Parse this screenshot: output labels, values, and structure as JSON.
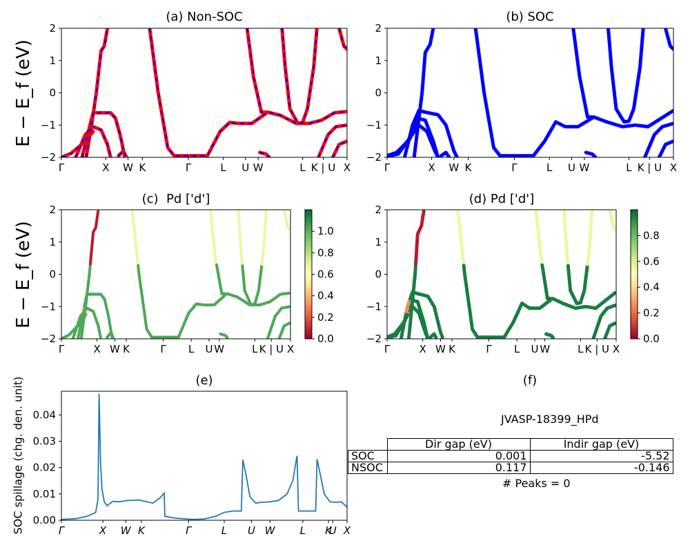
{
  "figure": {
    "ylabel_band": "E − E_f (eV)",
    "ylabel_spillage": "SOC spillage (chg. den. unit)"
  },
  "kpath_labels": [
    "Γ",
    "X",
    "W",
    "K",
    "Γ",
    "L",
    "U",
    "W",
    "L",
    "K | U",
    "X"
  ],
  "chart_data": [
    {
      "panel": "a",
      "type": "line",
      "title": "(a) Non-SOC",
      "xticks": [
        "Γ",
        "X",
        "W",
        "K",
        "Γ",
        "L",
        "U",
        "W",
        "L",
        "K | U",
        "X"
      ],
      "ylim": [
        -2,
        2
      ],
      "yticks": [
        -2,
        -1,
        0,
        1,
        2
      ],
      "style": "red solid with blue dashed overlay (spin up / spin down identical)",
      "colors": {
        "up": "#ff0000",
        "down": "#0000ff"
      },
      "series": [
        {
          "points": [
            [
              0,
              -2
            ],
            [
              0.3,
              -1.88
            ],
            [
              0.7,
              -1.55
            ],
            [
              1.0,
              -1.2
            ]
          ]
        },
        {
          "points": [
            [
              0.45,
              -2
            ],
            [
              0.75,
              -1.3
            ],
            [
              1.0,
              -1.05
            ],
            [
              1.25,
              -1.15
            ],
            [
              1.45,
              -1.6
            ],
            [
              1.55,
              -2
            ]
          ]
        },
        {
          "points": [
            [
              0.65,
              -2
            ],
            [
              0.85,
              -1.2
            ],
            [
              1.0,
              -0.62
            ],
            [
              1.55,
              -0.62
            ],
            [
              1.7,
              -0.78
            ],
            [
              1.85,
              -1.3
            ],
            [
              2.0,
              -2
            ]
          ]
        },
        {
          "points": [
            [
              0.78,
              -2
            ],
            [
              0.95,
              -1.0
            ],
            [
              1.1,
              0.0
            ],
            [
              1.25,
              1.3
            ],
            [
              1.35,
              1.45
            ],
            [
              1.45,
              2.0
            ]
          ]
        },
        {
          "points": [
            [
              1.8,
              -1.95
            ],
            [
              1.95,
              -1.8
            ],
            [
              2.05,
              -2.0
            ]
          ]
        },
        {
          "points": [
            [
              2.78,
              2.0
            ],
            [
              3.05,
              0.0
            ],
            [
              3.35,
              -1.7
            ],
            [
              3.55,
              -1.95
            ],
            [
              4.6,
              -1.95
            ],
            [
              5.0,
              -1.2
            ],
            [
              5.3,
              -0.92
            ],
            [
              5.6,
              -0.95
            ],
            [
              6.0,
              -0.95
            ],
            [
              6.5,
              -0.6
            ],
            [
              6.9,
              -0.7
            ],
            [
              7.4,
              -0.95
            ],
            [
              7.8,
              -0.95
            ],
            [
              8.2,
              -0.85
            ],
            [
              8.6,
              -0.62
            ],
            [
              9.0,
              -0.58
            ]
          ]
        },
        {
          "points": [
            [
              5.85,
              2.0
            ],
            [
              6.05,
              0.5
            ],
            [
              6.3,
              -0.6
            ],
            [
              6.45,
              -0.6
            ]
          ]
        },
        {
          "points": [
            [
              6.95,
              2.0
            ],
            [
              7.05,
              0.8
            ],
            [
              7.2,
              -0.5
            ],
            [
              7.45,
              -0.95
            ],
            [
              7.6,
              -0.92
            ],
            [
              7.75,
              -0.5
            ],
            [
              7.95,
              0.8
            ],
            [
              8.05,
              2.0
            ]
          ]
        },
        {
          "points": [
            [
              6.25,
              -1.85
            ],
            [
              6.45,
              -1.9
            ],
            [
              6.55,
              -2.0
            ]
          ]
        },
        {
          "points": [
            [
              8.1,
              -2.0
            ],
            [
              8.4,
              -1.3
            ],
            [
              8.65,
              -1.05
            ],
            [
              9.0,
              -1.0
            ]
          ]
        },
        {
          "points": [
            [
              8.75,
              2.0
            ],
            [
              8.9,
              1.45
            ],
            [
              9.0,
              1.35
            ]
          ]
        },
        {
          "points": [
            [
              8.55,
              -2.0
            ],
            [
              8.75,
              -1.6
            ],
            [
              9.0,
              -1.5
            ]
          ]
        }
      ]
    },
    {
      "panel": "b",
      "type": "line",
      "title": "(b) SOC",
      "xticks": [
        "Γ",
        "X",
        "W",
        "K",
        "Γ",
        "L",
        "U",
        "W",
        "L",
        "K | U",
        "X"
      ],
      "ylim": [
        -2,
        2
      ],
      "yticks": [
        -2,
        -1,
        0,
        1,
        2
      ],
      "colors": {
        "band": "#0000ff"
      },
      "series": [
        {
          "points": [
            [
              0,
              -1.95
            ],
            [
              0.3,
              -1.85
            ],
            [
              0.7,
              -1.45
            ],
            [
              1.0,
              -0.8
            ],
            [
              1.2,
              -0.85
            ],
            [
              1.45,
              -1.5
            ],
            [
              1.6,
              -2.0
            ]
          ]
        },
        {
          "points": [
            [
              0,
              -1.97
            ],
            [
              0.35,
              -1.9
            ],
            [
              0.75,
              -1.35
            ],
            [
              1.0,
              -1.0
            ],
            [
              1.25,
              -1.2
            ],
            [
              1.5,
              -1.8
            ],
            [
              1.6,
              -2.0
            ]
          ]
        },
        {
          "points": [
            [
              0.55,
              -2.0
            ],
            [
              0.8,
              -1.0
            ],
            [
              1.0,
              -0.55
            ],
            [
              1.2,
              -0.6
            ],
            [
              1.6,
              -0.68
            ],
            [
              1.85,
              -1.0
            ],
            [
              2.1,
              -1.8
            ],
            [
              2.2,
              -2.0
            ]
          ]
        },
        {
          "points": [
            [
              0.85,
              -2.0
            ],
            [
              1.0,
              -0.8
            ],
            [
              1.1,
              0.0
            ],
            [
              1.2,
              1.25
            ],
            [
              1.35,
              1.5
            ],
            [
              1.45,
              2.0
            ]
          ]
        },
        {
          "points": [
            [
              1.7,
              -1.95
            ],
            [
              1.85,
              -1.85
            ],
            [
              1.95,
              -2.0
            ]
          ]
        },
        {
          "points": [
            [
              2.78,
              2.0
            ],
            [
              3.05,
              0.0
            ],
            [
              3.35,
              -1.7
            ],
            [
              3.55,
              -1.95
            ],
            [
              4.6,
              -1.95
            ],
            [
              4.95,
              -1.5
            ],
            [
              5.3,
              -0.9
            ],
            [
              5.6,
              -1.05
            ],
            [
              6.0,
              -1.05
            ],
            [
              6.5,
              -0.75
            ],
            [
              6.9,
              -0.9
            ],
            [
              7.4,
              -1.05
            ],
            [
              7.8,
              -1.0
            ],
            [
              8.2,
              -1.05
            ],
            [
              8.6,
              -0.8
            ],
            [
              9.0,
              -0.55
            ]
          ]
        },
        {
          "points": [
            [
              5.85,
              2.0
            ],
            [
              6.05,
              0.5
            ],
            [
              6.3,
              -0.75
            ],
            [
              6.45,
              -0.75
            ]
          ]
        },
        {
          "points": [
            [
              6.95,
              2.0
            ],
            [
              7.05,
              0.8
            ],
            [
              7.2,
              -0.5
            ],
            [
              7.45,
              -0.9
            ],
            [
              7.6,
              -0.88
            ],
            [
              7.75,
              -0.5
            ],
            [
              7.95,
              0.8
            ],
            [
              8.05,
              2.0
            ]
          ]
        },
        {
          "points": [
            [
              6.25,
              -1.85
            ],
            [
              6.45,
              -1.9
            ],
            [
              6.55,
              -2.0
            ]
          ]
        },
        {
          "points": [
            [
              8.1,
              -2.0
            ],
            [
              8.4,
              -1.3
            ],
            [
              8.65,
              -1.05
            ],
            [
              9.0,
              -0.95
            ]
          ]
        },
        {
          "points": [
            [
              8.75,
              2.0
            ],
            [
              8.9,
              1.45
            ],
            [
              9.0,
              1.35
            ]
          ]
        },
        {
          "points": [
            [
              8.55,
              -2.0
            ],
            [
              8.75,
              -1.6
            ],
            [
              9.0,
              -1.5
            ]
          ]
        }
      ]
    },
    {
      "panel": "c",
      "type": "scatter",
      "title": "(c)  Pd ['d']",
      "xticks": [
        "Γ",
        "X",
        "W",
        "K",
        "Γ",
        "L",
        "U",
        "W",
        "L",
        "K | U",
        "X"
      ],
      "ylim": [
        -2,
        2
      ],
      "yticks": [
        -2,
        -1,
        0,
        1,
        2
      ],
      "colorbar": {
        "label": "",
        "range": [
          0.0,
          1.2
        ],
        "ticks": [
          "0.0",
          "0.2",
          "0.4",
          "0.6",
          "0.8",
          "1.0"
        ],
        "colormap": "RdYlGn"
      }
    },
    {
      "panel": "d",
      "type": "scatter",
      "title": "(d) Pd ['d']",
      "xticks": [
        "Γ",
        "X",
        "W",
        "K",
        "Γ",
        "L",
        "U",
        "W",
        "L",
        "K | U",
        "X"
      ],
      "ylim": [
        -2,
        2
      ],
      "yticks": [
        -2,
        -1,
        0,
        1,
        2
      ],
      "colorbar": {
        "label": "",
        "range": [
          0.0,
          1.0
        ],
        "ticks": [
          "0.0",
          "0.2",
          "0.4",
          "0.6",
          "0.8"
        ],
        "colormap": "RdYlGn"
      }
    },
    {
      "panel": "e",
      "type": "line",
      "title": "(e)",
      "ylabel": "SOC spillage (chg. den. unit)",
      "xticks": [
        "Γ",
        "X",
        "W",
        "K",
        "Γ",
        "L",
        "U",
        "W",
        "L",
        "K",
        "U",
        "X"
      ],
      "ylim": [
        0,
        0.049
      ],
      "yticks": [
        "0.00",
        "0.01",
        "0.02",
        "0.03",
        "0.04"
      ],
      "colors": {
        "line": "#1f77b4"
      },
      "series": [
        {
          "points": [
            [
              0,
              0.0003
            ],
            [
              0.5,
              0.0006
            ],
            [
              0.9,
              0.0015
            ],
            [
              1.2,
              0.003
            ],
            [
              1.28,
              0.008
            ],
            [
              1.32,
              0.048
            ],
            [
              1.37,
              0.022
            ],
            [
              1.42,
              0.012
            ],
            [
              1.5,
              0.007
            ],
            [
              1.6,
              0.0055
            ],
            [
              1.8,
              0.0072
            ],
            [
              2.0,
              0.007
            ],
            [
              2.3,
              0.0075
            ],
            [
              2.7,
              0.0077
            ],
            [
              3.0,
              0.007
            ],
            [
              3.2,
              0.0065
            ],
            [
              3.45,
              0.0085
            ],
            [
              3.6,
              0.0103
            ],
            [
              3.62,
              0.0015
            ],
            [
              4.0,
              0.0008
            ],
            [
              4.6,
              0.0003
            ],
            [
              5.0,
              0.0005
            ],
            [
              5.4,
              0.0015
            ],
            [
              5.7,
              0.003
            ],
            [
              6.0,
              0.0035
            ],
            [
              6.3,
              0.0035
            ],
            [
              6.35,
              0.023
            ],
            [
              6.45,
              0.018
            ],
            [
              6.6,
              0.009
            ],
            [
              6.8,
              0.0065
            ],
            [
              7.0,
              0.0068
            ],
            [
              7.3,
              0.007
            ],
            [
              7.6,
              0.0075
            ],
            [
              7.9,
              0.01
            ],
            [
              8.1,
              0.015
            ],
            [
              8.25,
              0.0245
            ],
            [
              8.3,
              0.0035
            ],
            [
              8.6,
              0.0035
            ],
            [
              8.9,
              0.0035
            ],
            [
              8.95,
              0.0232
            ],
            [
              9.05,
              0.018
            ],
            [
              9.2,
              0.01
            ],
            [
              9.4,
              0.007
            ],
            [
              9.6,
              0.0068
            ],
            [
              9.8,
              0.007
            ],
            [
              10.0,
              0.005
            ]
          ]
        }
      ]
    }
  ],
  "info_panel": {
    "title": "(f)",
    "material": "JVASP-18399_HPd",
    "table": {
      "headers": [
        "Dir gap (eV)",
        "Indir gap (eV)"
      ],
      "rows": [
        {
          "label": "SOC",
          "dir": "0.001",
          "indir": "-5.52"
        },
        {
          "label": "NSOC",
          "dir": "0.117",
          "indir": "-0.146"
        }
      ]
    },
    "peaks": "# Peaks = 0"
  }
}
